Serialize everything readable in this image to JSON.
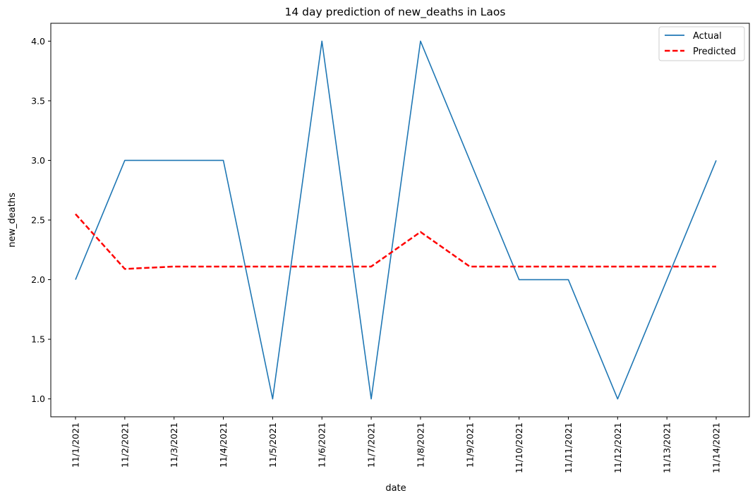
{
  "chart_data": {
    "type": "line",
    "title": "14 day prediction of new_deaths in Laos",
    "xlabel": "date",
    "ylabel": "new_deaths",
    "categories": [
      "11/1/2021",
      "11/2/2021",
      "11/3/2021",
      "11/4/2021",
      "11/5/2021",
      "11/6/2021",
      "11/7/2021",
      "11/8/2021",
      "11/9/2021",
      "11/10/2021",
      "11/11/2021",
      "11/12/2021",
      "11/13/2021",
      "11/14/2021"
    ],
    "yticks": [
      "1.0",
      "1.5",
      "2.0",
      "2.5",
      "3.0",
      "3.5",
      "4.0"
    ],
    "ylim": [
      0.85,
      4.15
    ],
    "grid": false,
    "legend_position": "top-right",
    "series": [
      {
        "name": "Actual",
        "color": "#1f77b4",
        "style": "solid",
        "values": [
          2,
          3,
          3,
          3,
          1,
          4,
          1,
          4,
          3,
          2,
          2,
          1,
          2,
          3
        ]
      },
      {
        "name": "Predicted",
        "color": "#ff0000",
        "style": "dashed",
        "values": [
          2.55,
          2.09,
          2.11,
          2.11,
          2.11,
          2.11,
          2.11,
          2.4,
          2.11,
          2.11,
          2.11,
          2.11,
          2.11,
          2.11
        ]
      }
    ]
  }
}
